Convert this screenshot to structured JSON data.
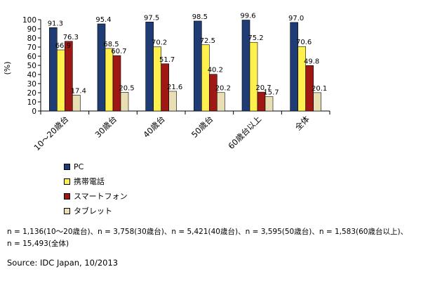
{
  "chart_data": {
    "type": "bar",
    "ylabel": "(%)",
    "ylim": [
      0,
      100
    ],
    "yticks": [
      0,
      10,
      20,
      30,
      40,
      50,
      60,
      70,
      80,
      90,
      100
    ],
    "grid": false,
    "legend_position": "bottom-left",
    "categories": [
      "10～20歳台",
      "30歳台",
      "40歳台",
      "50歳台",
      "60歳台以上",
      "全体"
    ],
    "series": [
      {
        "name": "PC",
        "color": "#1F3C74",
        "values": [
          91.3,
          95.4,
          97.5,
          98.5,
          99.6,
          97.0
        ]
      },
      {
        "name": "携帯電話",
        "color": "#FFF04E",
        "values": [
          66.9,
          68.5,
          70.2,
          72.5,
          75.2,
          70.6
        ]
      },
      {
        "name": "スマートフォン",
        "color": "#A01814",
        "values": [
          76.3,
          60.7,
          51.7,
          40.2,
          20.7,
          49.8
        ]
      },
      {
        "name": "タブレット",
        "color": "#E8E0B4",
        "values": [
          17.4,
          20.5,
          21.6,
          20.2,
          15.7,
          20.1
        ]
      }
    ]
  },
  "note": "n = 1,136(10～20歳台)、n = 3,758(30歳台)、n = 5,421(40歳台)、n = 3,595(50歳台)、n = 1,583(60歳台以上)、\nn = 15,493(全体)",
  "source": "Source: IDC Japan, 10/2013"
}
